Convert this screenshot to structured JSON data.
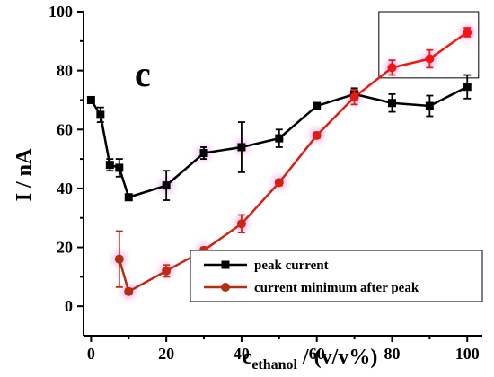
{
  "chart_data": {
    "type": "line",
    "panel_label": "c",
    "xlabel": {
      "main": "c",
      "sub": "ethanol",
      "rest": " / (v/v%)"
    },
    "ylabel": "I / nA",
    "xlim": [
      -2,
      104
    ],
    "ylim": [
      -10,
      100
    ],
    "x_ticks": [
      0,
      20,
      40,
      60,
      80,
      100
    ],
    "y_ticks": [
      0,
      20,
      40,
      60,
      80,
      100
    ],
    "x_tick_labels": [
      "0",
      "20",
      "40",
      "60",
      "80",
      "100"
    ],
    "y_tick_labels": [
      "0",
      "20",
      "40",
      "60",
      "80",
      "100"
    ],
    "legend_position": "bottom-right",
    "series": [
      {
        "name": "peak current",
        "color": "#000000",
        "marker": "square",
        "points": [
          {
            "x": 0,
            "y": 70,
            "err": 1
          },
          {
            "x": 2.5,
            "y": 65,
            "err": 2.5
          },
          {
            "x": 5,
            "y": 48,
            "err": 2
          },
          {
            "x": 7.5,
            "y": 47,
            "err": 3
          },
          {
            "x": 10,
            "y": 37,
            "err": 1
          },
          {
            "x": 20,
            "y": 41,
            "err": 5
          },
          {
            "x": 30,
            "y": 52,
            "err": 2
          },
          {
            "x": 40,
            "y": 54,
            "err": 8.5
          },
          {
            "x": 50,
            "y": 57,
            "err": 3
          },
          {
            "x": 60,
            "y": 68,
            "err": 1
          },
          {
            "x": 70,
            "y": 72,
            "err": 2
          },
          {
            "x": 80,
            "y": 69,
            "err": 3
          },
          {
            "x": 90,
            "y": 68,
            "err": 3.5
          },
          {
            "x": 100,
            "y": 74.5,
            "err": 4
          }
        ]
      },
      {
        "name": "current minimum after peak",
        "color": "#b03010",
        "color_end": "#ff1010",
        "marker": "circle",
        "points": [
          {
            "x": 7.5,
            "y": 16,
            "err": 9.5
          },
          {
            "x": 10,
            "y": 5,
            "err": 1
          },
          {
            "x": 20,
            "y": 12,
            "err": 2
          },
          {
            "x": 30,
            "y": 19,
            "err": 1
          },
          {
            "x": 40,
            "y": 28,
            "err": 3
          },
          {
            "x": 50,
            "y": 42,
            "err": 1
          },
          {
            "x": 60,
            "y": 58,
            "err": 1
          },
          {
            "x": 70,
            "y": 71,
            "err": 2.5
          },
          {
            "x": 80,
            "y": 81,
            "err": 2.5
          },
          {
            "x": 90,
            "y": 84,
            "err": 3
          },
          {
            "x": 100,
            "y": 93,
            "err": 1.5
          }
        ]
      }
    ],
    "highlight_box": {
      "x": [
        76.5,
        103
      ],
      "y": [
        77.5,
        100
      ]
    }
  }
}
